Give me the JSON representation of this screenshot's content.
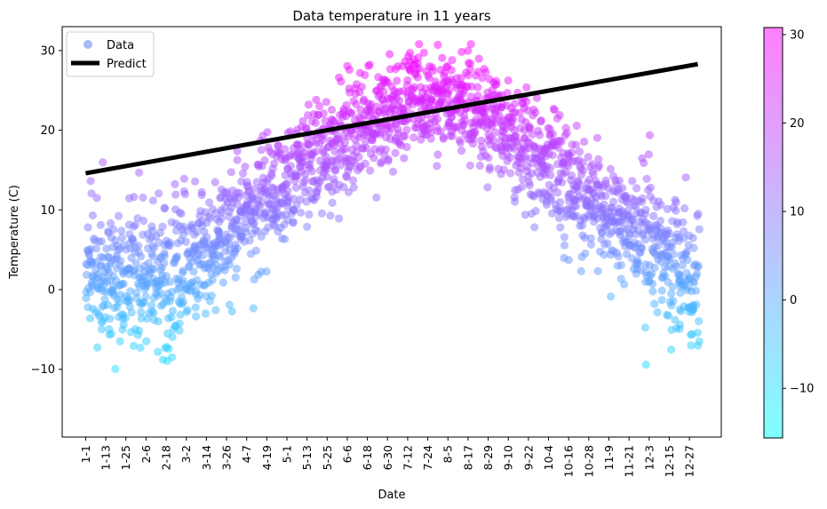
{
  "chart_data": {
    "type": "scatter",
    "title": "Data temperature in 11 years",
    "xlabel": "Date",
    "ylabel": "Temperature (C)",
    "ylim": [
      -18.5,
      33
    ],
    "yticks": [
      -10,
      0,
      10,
      20,
      30
    ],
    "ytick_labels": [
      "−10",
      "0",
      "10",
      "20",
      "30"
    ],
    "x_tick_labels": [
      "1-1",
      "1-13",
      "1-25",
      "2-6",
      "2-18",
      "3-2",
      "3-14",
      "3-26",
      "4-7",
      "4-19",
      "5-1",
      "5-13",
      "5-25",
      "6-6",
      "6-18",
      "6-30",
      "7-12",
      "7-24",
      "8-5",
      "8-17",
      "8-29",
      "9-10",
      "9-22",
      "10-4",
      "10-16",
      "10-28",
      "11-9",
      "11-21",
      "12-3",
      "12-15",
      "12-27"
    ],
    "x_tick_step_days": 12,
    "xlim_days": [
      -14,
      379
    ],
    "legend": {
      "placement": "top-left",
      "entries": [
        {
          "label": "Data",
          "marker": "circle",
          "color": "#a8b8f8"
        },
        {
          "label": "Predict",
          "marker": "line",
          "color": "#000000"
        }
      ]
    },
    "series": [
      {
        "name": "Data",
        "kind": "scatter",
        "colormap": "cool",
        "alpha": 0.5,
        "profile_mean_by_month": [
          2.0,
          1.5,
          5.5,
          11.0,
          16.0,
          20.0,
          23.5,
          23.0,
          18.5,
          13.5,
          8.0,
          3.0
        ],
        "years": 11
      },
      {
        "name": "Predict",
        "kind": "line",
        "color": "#000000",
        "points": [
          [
            0,
            14.6
          ],
          [
            365,
            28.3
          ]
        ]
      }
    ],
    "colorbar": {
      "colormap": "cool",
      "range": [
        -15.6,
        30.8
      ],
      "ticks": [
        -10,
        0,
        10,
        20,
        30
      ],
      "tick_labels": [
        "−10",
        "0",
        "10",
        "20",
        "30"
      ]
    },
    "grid": false
  }
}
